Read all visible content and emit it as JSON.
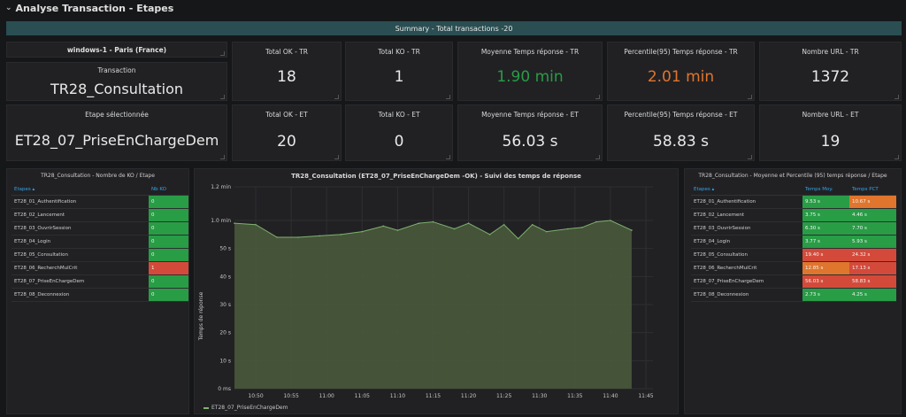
{
  "header": {
    "title": "Analyse Transaction - Etapes"
  },
  "summary": {
    "label": "Summary - Total transactions -20"
  },
  "info": {
    "location": "windows-1 - Paris (France)",
    "transaction_label": "Transaction",
    "transaction_value": "TR28_Consultation",
    "step_label": "Etape sélectionnée",
    "step_value": "ET28_07_PriseEnChargeDem"
  },
  "stats_tr": [
    {
      "title": "Total OK - TR",
      "value": "18",
      "color": "#e9e9e9"
    },
    {
      "title": "Total KO - TR",
      "value": "1",
      "color": "#e9e9e9"
    },
    {
      "title": "Moyenne Temps réponse - TR",
      "value": "1.90 min",
      "color": "#299c46"
    },
    {
      "title": "Percentile(95) Temps réponse - TR",
      "value": "2.01 min",
      "color": "#e0752d"
    },
    {
      "title": "Nombre URL - TR",
      "value": "1372",
      "color": "#e9e9e9"
    }
  ],
  "stats_et": [
    {
      "title": "Total OK - ET",
      "value": "20"
    },
    {
      "title": "Total KO - ET",
      "value": "0"
    },
    {
      "title": "Moyenne Temps réponse - ET",
      "value": "56.03 s"
    },
    {
      "title": "Percentile(95) Temps réponse - ET",
      "value": "58.83 s"
    },
    {
      "title": "Nombre URL - ET",
      "value": "19"
    }
  ],
  "ko_table": {
    "title": "TR28_Consultation - Nombre de KO / Etape",
    "col_step": "Etapes ▴",
    "col_ko": "Nb KO",
    "rows": [
      {
        "step": "ET28_01_Authentification",
        "ko": "0",
        "status": "green"
      },
      {
        "step": "ET28_02_Lancement",
        "ko": "0",
        "status": "green"
      },
      {
        "step": "ET28_03_OuvrirSession",
        "ko": "0",
        "status": "green"
      },
      {
        "step": "ET28_04_Login",
        "ko": "0",
        "status": "green"
      },
      {
        "step": "ET28_05_Consultation",
        "ko": "0",
        "status": "green"
      },
      {
        "step": "ET28_06_RecherchMulCrit",
        "ko": "1",
        "status": "red"
      },
      {
        "step": "ET28_07_PriseEnChargeDem",
        "ko": "0",
        "status": "green"
      },
      {
        "step": "ET28_08_Deconnexion",
        "ko": "0",
        "status": "green"
      }
    ]
  },
  "time_table": {
    "title": "TR28_Consultation - Moyenne et Percentile (95) temps réponse / Etape",
    "col_step": "Etapes ▴",
    "col_avg": "Temps Moy.",
    "col_pct": "Temps PCT",
    "rows": [
      {
        "step": "ET28_01_Authentification",
        "avg": "9.53 s",
        "avg_status": "green",
        "pct": "10.67 s",
        "pct_status": "orange"
      },
      {
        "step": "ET28_02_Lancement",
        "avg": "3.75 s",
        "avg_status": "green",
        "pct": "4.46 s",
        "pct_status": "green"
      },
      {
        "step": "ET28_03_OuvrirSession",
        "avg": "6.30 s",
        "avg_status": "green",
        "pct": "7.70 s",
        "pct_status": "green"
      },
      {
        "step": "ET28_04_Login",
        "avg": "3.77 s",
        "avg_status": "green",
        "pct": "5.93 s",
        "pct_status": "green"
      },
      {
        "step": "ET28_05_Consultation",
        "avg": "19.40 s",
        "avg_status": "red",
        "pct": "24.32 s",
        "pct_status": "red"
      },
      {
        "step": "ET28_06_RecherchMulCrit",
        "avg": "12.85 s",
        "avg_status": "orange",
        "pct": "17.13 s",
        "pct_status": "red"
      },
      {
        "step": "ET28_07_PriseEnChargeDem",
        "avg": "56.03 s",
        "avg_status": "red",
        "pct": "58.83 s",
        "pct_status": "red"
      },
      {
        "step": "ET28_08_Deconnexion",
        "avg": "2.73 s",
        "avg_status": "green",
        "pct": "4.25 s",
        "pct_status": "green"
      }
    ]
  },
  "colors": {
    "green": "#299c46",
    "red": "#d44a3a",
    "orange": "#e0752d",
    "series": "#7eb26d"
  },
  "chart_data": {
    "type": "area",
    "title": "TR28_Consultation (ET28_07_PriseEnChargeDem -OK) - Suivi des temps de réponse",
    "ylabel": "Temps de réponse",
    "ylim_seconds": [
      0,
      72
    ],
    "y_ticks": [
      {
        "value": 0,
        "label": "0 ms"
      },
      {
        "value": 10,
        "label": "10 s"
      },
      {
        "value": 20,
        "label": "20 s"
      },
      {
        "value": 30,
        "label": "30 s"
      },
      {
        "value": 40,
        "label": "40 s"
      },
      {
        "value": 50,
        "label": "50 s"
      },
      {
        "value": 60,
        "label": "1.0 min"
      },
      {
        "value": 72,
        "label": "1.2 min"
      }
    ],
    "x_ticks": [
      "10:50",
      "10:55",
      "11:00",
      "11:05",
      "11:10",
      "11:15",
      "11:20",
      "11:25",
      "11:30",
      "11:35",
      "11:40",
      "11:45"
    ],
    "x_range": [
      "10:47",
      "11:46"
    ],
    "series": [
      {
        "name": "ET28_07_PriseEnChargeDem",
        "x": [
          "10:47",
          "10:50",
          "10:53",
          "10:56",
          "10:59",
          "11:02",
          "11:05",
          "11:08",
          "11:10",
          "11:13",
          "11:15",
          "11:18",
          "11:20",
          "11:23",
          "11:25",
          "11:27",
          "11:29",
          "11:31",
          "11:34",
          "11:36",
          "11:38",
          "11:40",
          "11:43"
        ],
        "values": [
          59,
          58.5,
          54,
          54,
          54.5,
          55,
          56,
          58,
          56.5,
          59,
          59.5,
          57,
          59,
          55,
          58.5,
          53.5,
          58.5,
          56,
          57,
          57.5,
          59.5,
          60,
          56.5
        ]
      }
    ]
  }
}
